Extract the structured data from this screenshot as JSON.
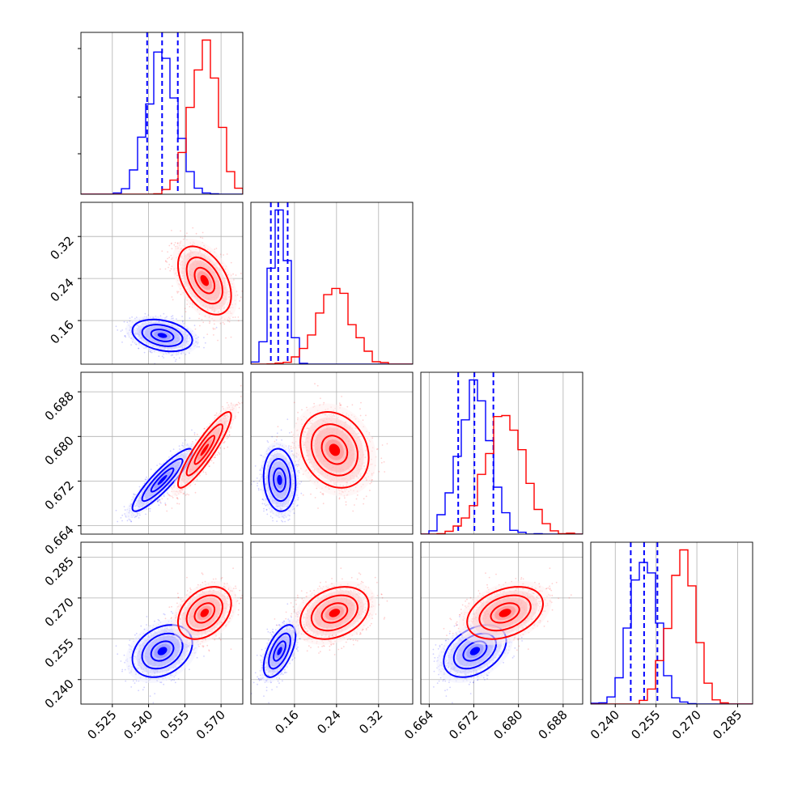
{
  "figure": {
    "type": "corner_plot",
    "n_params": 4
  },
  "colors": {
    "set_a": "#0000ff",
    "set_b": "#ff0000",
    "grid": "#b0b0b0",
    "axis": "#000000"
  },
  "chart_data": {
    "type": "corner",
    "grid": true,
    "params": [
      {
        "id": "p0",
        "range": [
          0.512,
          0.579
        ],
        "ticks": [
          "0.525",
          "0.540",
          "0.555",
          "0.570"
        ],
        "tick_values": [
          0.525,
          0.54,
          0.555,
          0.57
        ]
      },
      {
        "id": "p1",
        "range": [
          0.077,
          0.385
        ],
        "ticks": [
          "0.16",
          "0.24",
          "0.32"
        ],
        "tick_values": [
          0.16,
          0.24,
          0.32
        ]
      },
      {
        "id": "p2",
        "range": [
          0.6625,
          0.6915
        ],
        "ticks": [
          "0.664",
          "0.672",
          "0.680",
          "0.688"
        ],
        "tick_values": [
          0.664,
          0.672,
          0.68,
          0.688
        ]
      },
      {
        "id": "p3",
        "range": [
          0.231,
          0.2905
        ],
        "ticks": [
          "0.240",
          "0.255",
          "0.270",
          "0.285"
        ],
        "tick_values": [
          0.24,
          0.255,
          0.27,
          0.285
        ]
      }
    ],
    "samples": [
      {
        "id": "set_a",
        "color": "#0000ff",
        "mean": [
          0.5457,
          0.1317,
          0.6722,
          0.2505
        ],
        "std": [
          0.0062,
          0.0152,
          0.0028,
          0.0048
        ],
        "corr": [
          [
            1,
            -0.3,
            0.9,
            0.3
          ],
          [
            -0.3,
            1,
            -0.1,
            0.6
          ],
          [
            0.9,
            -0.1,
            1,
            0.4
          ],
          [
            0.3,
            0.6,
            0.4,
            1
          ]
        ],
        "quantiles": [
          [
            0.5394,
            0.5456,
            0.5521
          ],
          [
            0.115,
            0.129,
            0.147
          ],
          [
            0.6692,
            0.6721,
            0.6755
          ],
          [
            0.2457,
            0.2506,
            0.2555
          ]
        ]
      },
      {
        "id": "set_b",
        "color": "#ff0000",
        "mean": [
          0.5632,
          0.2363,
          0.6776,
          0.2645
        ],
        "std": [
          0.0055,
          0.0325,
          0.0034,
          0.0048
        ],
        "corr": [
          [
            1,
            -0.45,
            0.9,
            0.35
          ],
          [
            -0.45,
            1,
            -0.2,
            0.3
          ],
          [
            0.9,
            -0.2,
            1,
            0.35
          ],
          [
            0.35,
            0.3,
            0.35,
            1
          ]
        ],
        "quantiles": []
      }
    ]
  }
}
